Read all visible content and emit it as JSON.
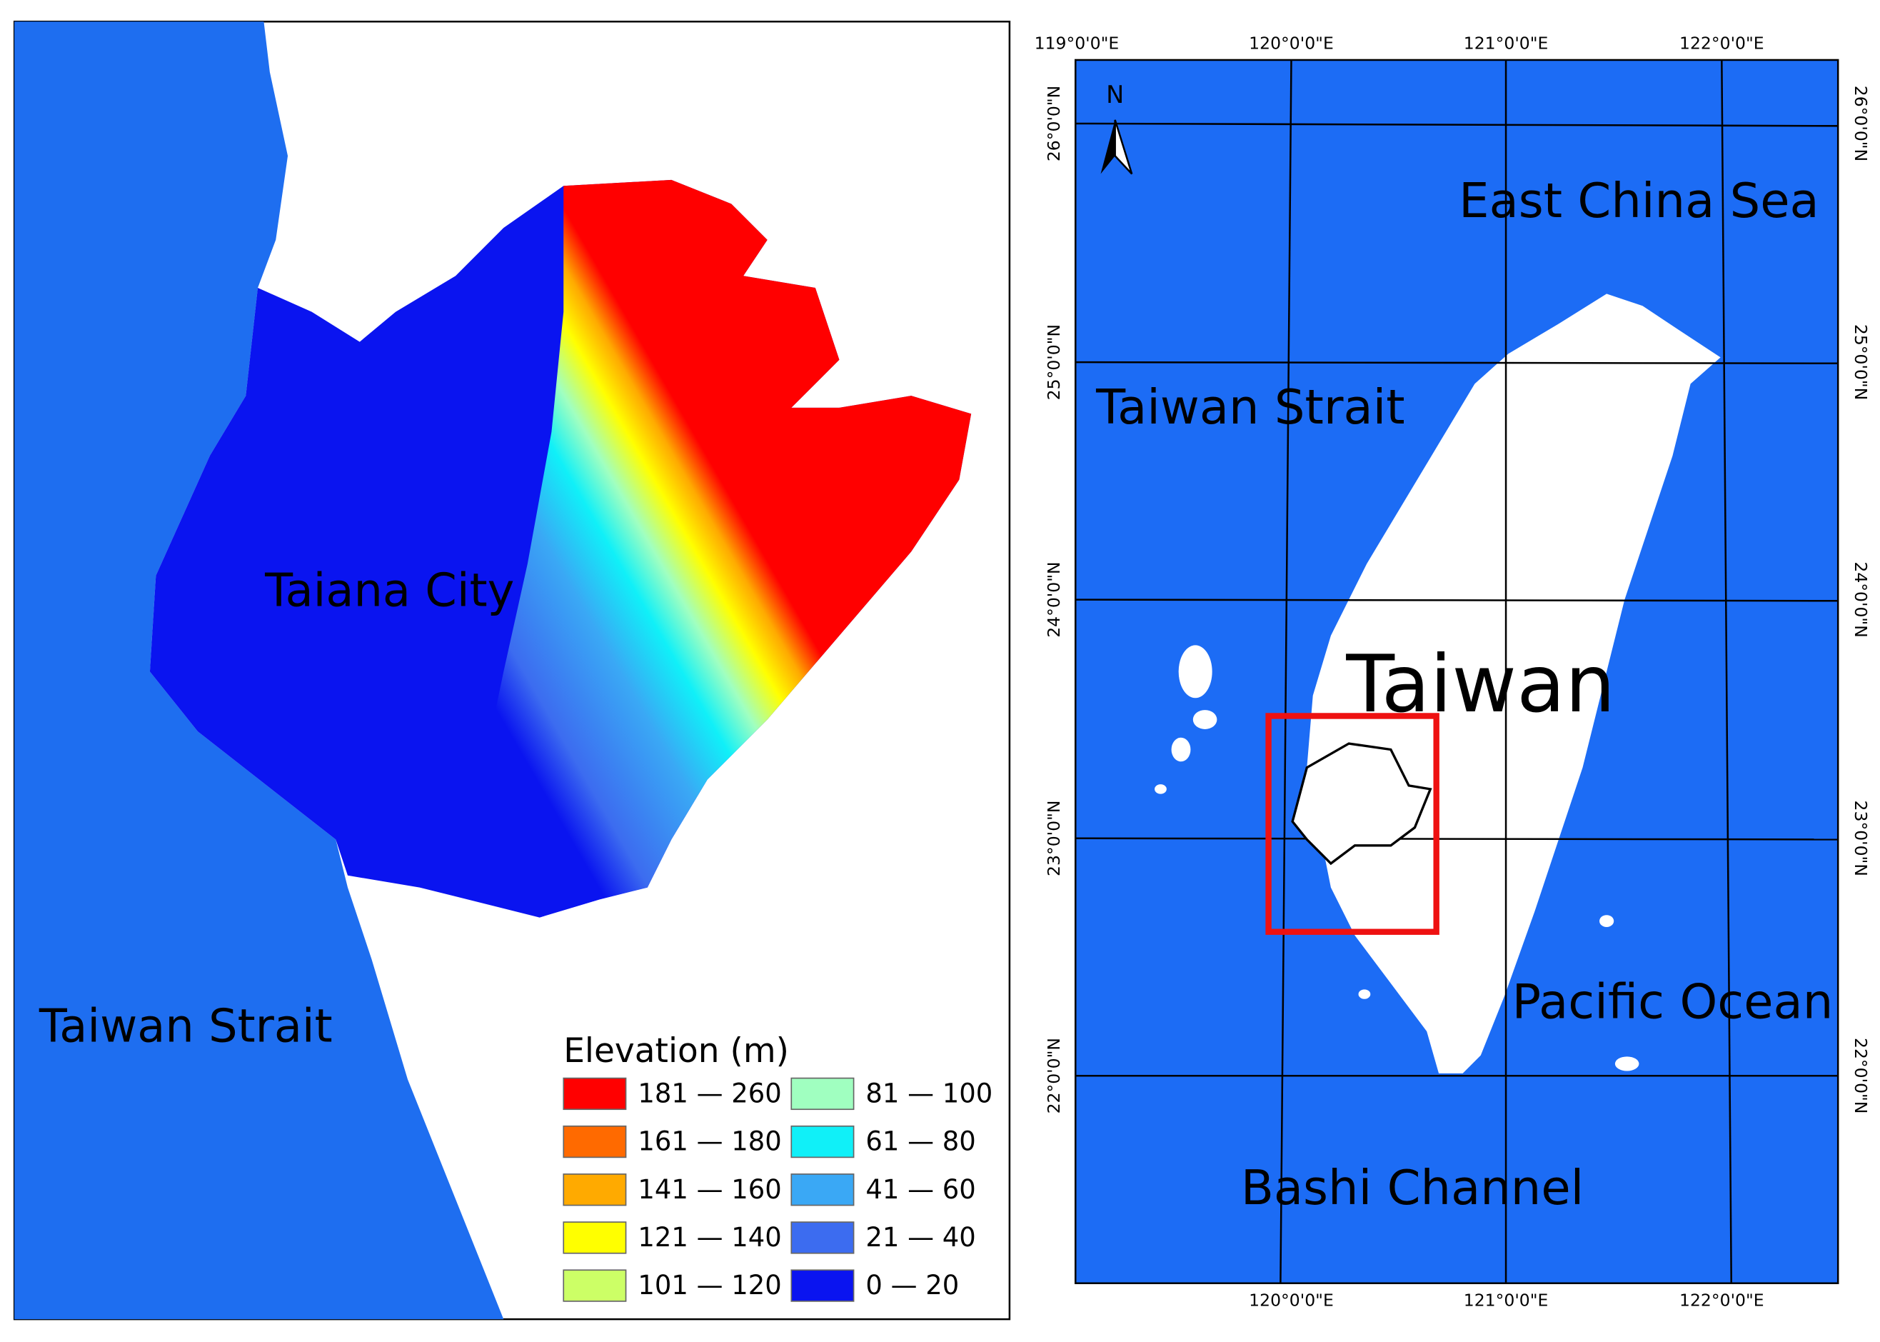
{
  "left_map": {
    "labels": {
      "city": "Taiana City",
      "strait": "Taiwan Strait"
    },
    "legend": {
      "title": "Elevation (m)",
      "items": [
        {
          "label": "181 — 260",
          "color": "#ff0000"
        },
        {
          "label": "161 — 180",
          "color": "#ff6a00"
        },
        {
          "label": "141 — 160",
          "color": "#ffaa00"
        },
        {
          "label": "121 — 140",
          "color": "#ffff00"
        },
        {
          "label": "101 — 120",
          "color": "#ccff66"
        },
        {
          "label": "81 — 100",
          "color": "#a0ffc0"
        },
        {
          "label": "61 — 80",
          "color": "#10f0f8"
        },
        {
          "label": "41 — 60",
          "color": "#3aa8f5"
        },
        {
          "label": "21 — 40",
          "color": "#3c6cf0"
        },
        {
          "label": "0 — 20",
          "color": "#0a14f0"
        }
      ]
    }
  },
  "right_map": {
    "north": "N",
    "labels": {
      "east_china_sea": "East China Sea",
      "strait": "Taiwan Strait",
      "island": "Taiwan",
      "pacific": "Pacific Ocean",
      "bashi": "Bashi Channel"
    },
    "top_ticks": [
      "119°0'0\"E",
      "120°0'0\"E",
      "121°0'0\"E",
      "122°0'0\"E"
    ],
    "bottom_ticks": [
      "120°0'0\"E",
      "121°0'0\"E",
      "122°0'0\"E"
    ],
    "left_ticks": [
      "26°0'0\"N",
      "25°0'0\"N",
      "24°0'0\"N",
      "23°0'0\"N",
      "22°0'0\"N"
    ],
    "right_ticks": [
      "26°0'0\"N",
      "25°0'0\"N",
      "24°0'0\"N",
      "23°0'0\"N",
      "22°0'0\"N"
    ]
  }
}
